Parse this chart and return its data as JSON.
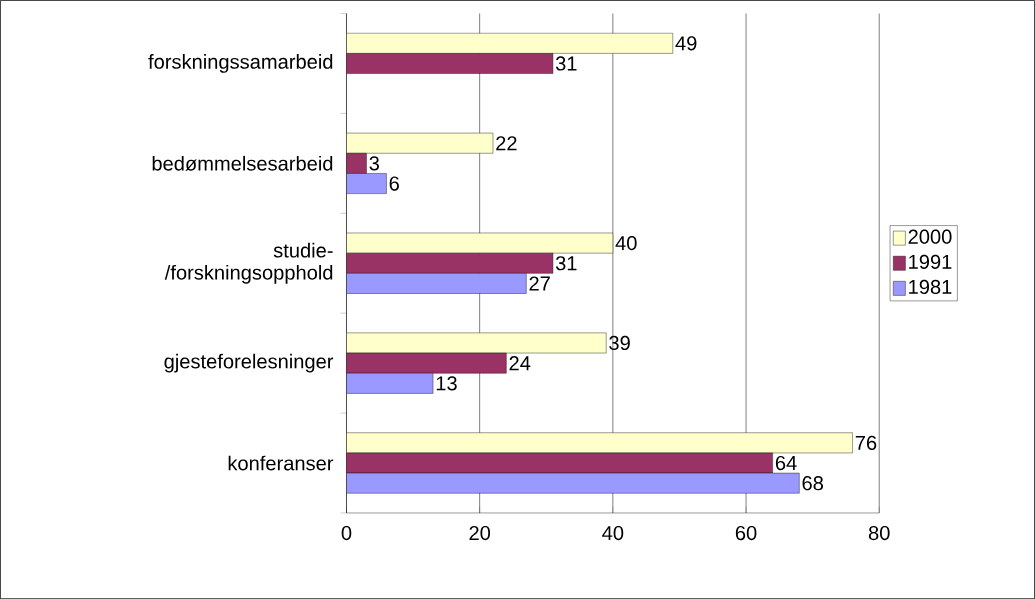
{
  "chart_data": {
    "type": "bar",
    "orientation": "horizontal",
    "categories": [
      "forskningssamarbeid",
      "bedømmelsesarbeid",
      "studie- /forskningsopphold",
      "gjesteforelesninger",
      "konferanser"
    ],
    "series": [
      {
        "name": "2000",
        "color": "#ffffcc",
        "values": [
          49,
          22,
          40,
          39,
          76
        ]
      },
      {
        "name": "1991",
        "color": "#993366",
        "values": [
          31,
          3,
          31,
          24,
          64
        ]
      },
      {
        "name": "1981",
        "color": "#9999ff",
        "values": [
          null,
          6,
          27,
          13,
          68
        ]
      }
    ],
    "xlim": [
      0,
      80
    ],
    "xticks": [
      0,
      20,
      40,
      60,
      80
    ],
    "grid": "x",
    "legend": "right",
    "data_labels": true
  }
}
